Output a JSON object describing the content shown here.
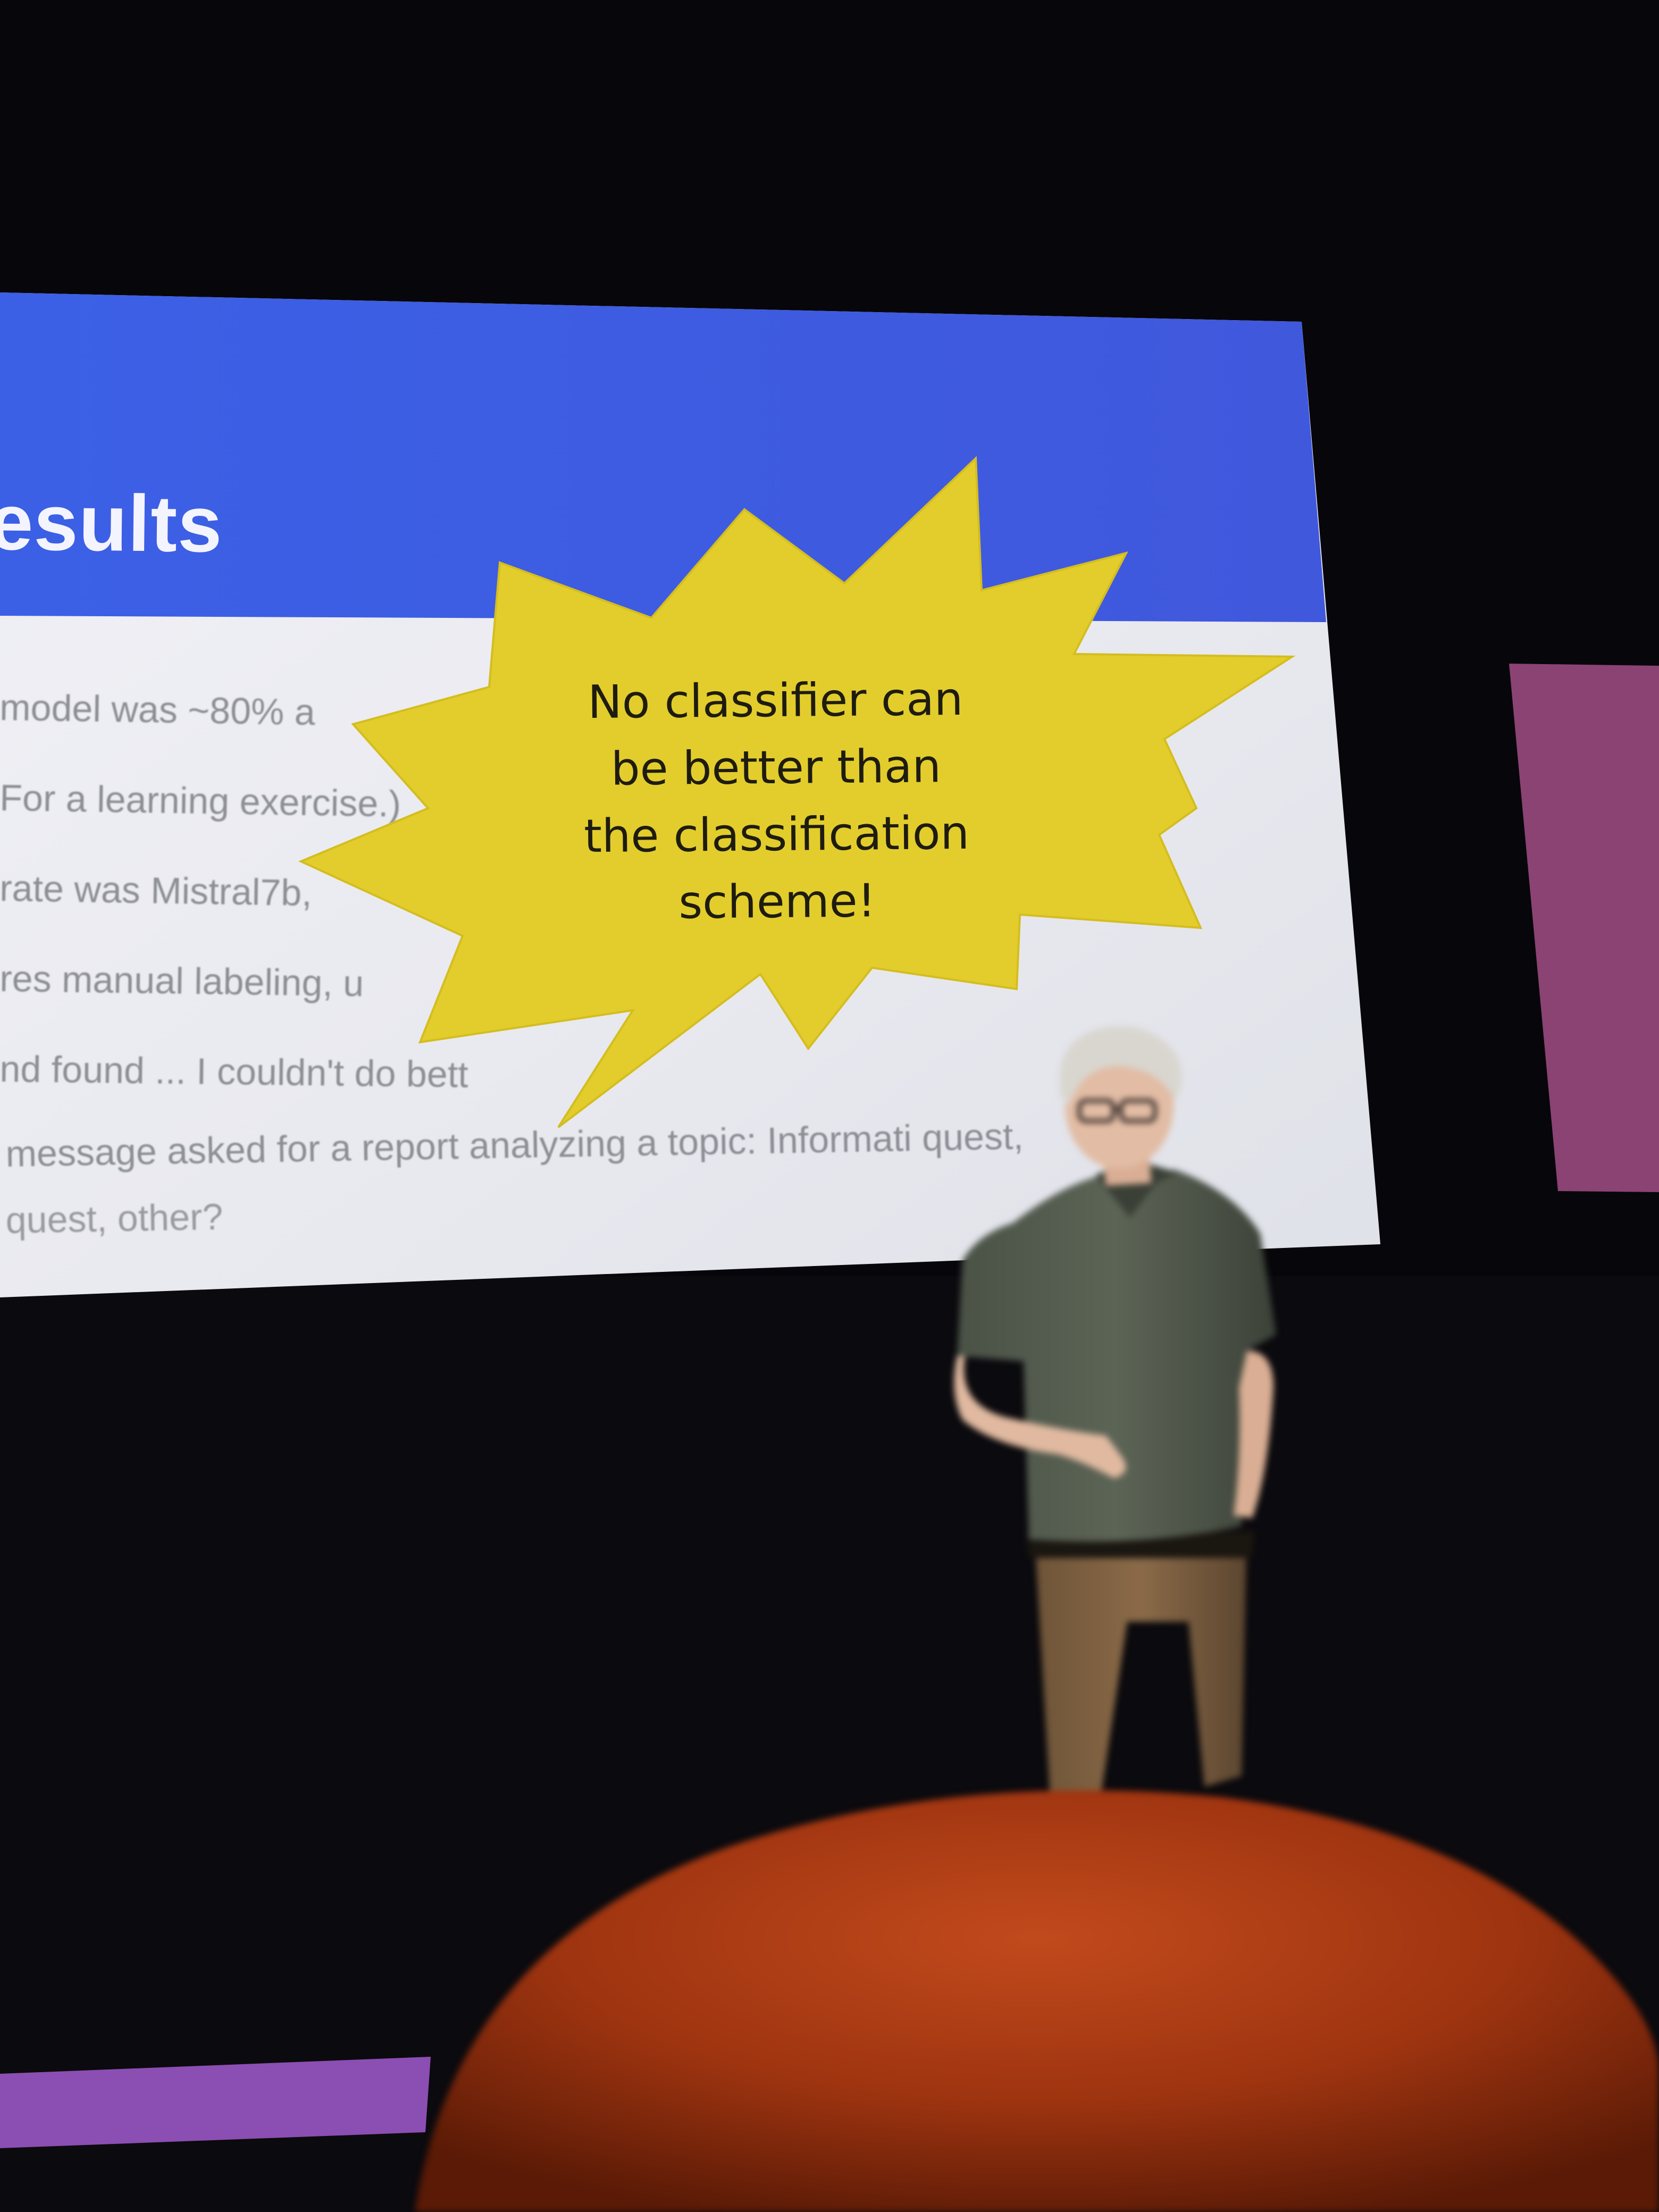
{
  "slide": {
    "title": "esults",
    "lines": [
      "model was ~80% a",
      "For a learning exercise.)",
      "rate was Mistral7b,",
      "res manual labeling, u",
      "nd found ... I couldn't do bett",
      "message asked for a report analyzing a topic: Informati quest,",
      "quest, other?"
    ],
    "colors": {
      "title_bar": "#3a5ae0",
      "body": "#ecedf2",
      "starburst": "#e3cd2c"
    }
  },
  "callout": {
    "lines": [
      "No classifier can",
      "be better than",
      "the classification",
      "scheme!"
    ],
    "shape": "starburst-icon"
  }
}
